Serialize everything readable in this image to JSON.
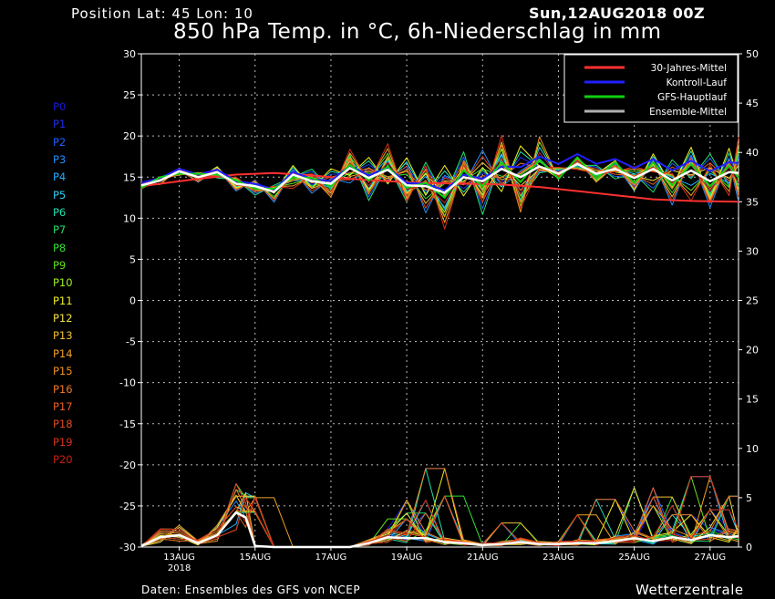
{
  "header": {
    "position": "Position  Lat: 45 Lon: 10",
    "date": "Sun,12AUG2018 00Z",
    "title": "850 hPa Temp. in °C, 6h-Niederschlag in mm"
  },
  "footer": {
    "source": "Daten: Ensembles des GFS von NCEP",
    "brand": "Wetterzentrale"
  },
  "members": [
    {
      "label": "P0",
      "color": "#1a1adc"
    },
    {
      "label": "P1",
      "color": "#2030e8"
    },
    {
      "label": "P2",
      "color": "#2060ff"
    },
    {
      "label": "P3",
      "color": "#2090ff"
    },
    {
      "label": "P4",
      "color": "#20b0ff"
    },
    {
      "label": "P5",
      "color": "#30d0f0"
    },
    {
      "label": "P6",
      "color": "#20e0b0"
    },
    {
      "label": "P7",
      "color": "#20e070"
    },
    {
      "label": "P8",
      "color": "#30e030"
    },
    {
      "label": "P9",
      "color": "#60e020"
    },
    {
      "label": "P10",
      "color": "#a0f020"
    },
    {
      "label": "P11",
      "color": "#f0f020"
    },
    {
      "label": "P12",
      "color": "#f0e040"
    },
    {
      "label": "P13",
      "color": "#f0c030"
    },
    {
      "label": "P14",
      "color": "#f0a020"
    },
    {
      "label": "P15",
      "color": "#f09020"
    },
    {
      "label": "P16",
      "color": "#f07820"
    },
    {
      "label": "P17",
      "color": "#e86020"
    },
    {
      "label": "P18",
      "color": "#e04820"
    },
    {
      "label": "P19",
      "color": "#d83018"
    },
    {
      "label": "P20",
      "color": "#c82010"
    }
  ],
  "chart_data": {
    "type": "line",
    "x_unit": "days from 12AUG2018 00Z",
    "xlim": [
      0.5,
      16.25
    ],
    "ylim_left": [
      -30,
      30
    ],
    "ylim_right": [
      0,
      50
    ],
    "y_left_ticks": [
      30,
      25,
      20,
      15,
      10,
      5,
      0,
      -5,
      -10,
      -15,
      -20,
      -25,
      -30
    ],
    "y_right_ticks": [
      50,
      45,
      40,
      35,
      30,
      25,
      20,
      15,
      10,
      5,
      0
    ],
    "x_ticks": [
      {
        "day": 1.5,
        "label": "13AUG",
        "sub": "2018"
      },
      {
        "day": 3.5,
        "label": "15AUG",
        "sub": ""
      },
      {
        "day": 5.5,
        "label": "17AUG",
        "sub": ""
      },
      {
        "day": 7.5,
        "label": "19AUG",
        "sub": ""
      },
      {
        "day": 9.5,
        "label": "21AUG",
        "sub": ""
      },
      {
        "day": 11.5,
        "label": "23AUG",
        "sub": ""
      },
      {
        "day": 13.5,
        "label": "25AUG",
        "sub": ""
      },
      {
        "day": 15.5,
        "label": "27AUG",
        "sub": ""
      }
    ],
    "grid": true,
    "legend_position": "top-right",
    "legend": [
      {
        "name": "30-Jahres-Mittel",
        "color": "#ff3030"
      },
      {
        "name": "Kontroll-Lauf",
        "color": "#2020ff"
      },
      {
        "name": "GFS-Hauptlauf",
        "color": "#10d010"
      },
      {
        "name": "Ensemble-Mittel",
        "color": "#b0b0b0"
      }
    ],
    "climatology_temp": {
      "days": [
        0.5,
        1,
        2,
        3,
        4,
        5,
        6,
        7,
        8,
        9,
        10,
        11,
        12,
        13,
        14,
        15,
        16.25
      ],
      "values": [
        13.9,
        14.2,
        14.8,
        15.3,
        15.5,
        15.2,
        14.8,
        14.5,
        14.3,
        14.2,
        14.1,
        13.8,
        13.3,
        12.8,
        12.3,
        12.1,
        12.0
      ]
    },
    "ensemble_mean_temp": {
      "days": [
        0.5,
        1,
        1.5,
        2,
        2.5,
        3,
        3.5,
        4,
        4.5,
        5,
        5.5,
        6,
        6.5,
        7,
        7.5,
        8,
        8.5,
        9,
        9.5,
        10,
        10.5,
        11,
        11.5,
        12,
        12.5,
        13,
        13.5,
        14,
        14.5,
        15,
        15.5,
        16,
        16.25
      ],
      "values": [
        14.0,
        14.6,
        15.7,
        15.0,
        15.6,
        14.2,
        13.9,
        13.2,
        15.3,
        14.5,
        14.2,
        16.1,
        14.9,
        15.9,
        14.0,
        13.9,
        13.1,
        15.0,
        14.5,
        16.0,
        15.0,
        16.3,
        15.4,
        16.6,
        15.4,
        16.0,
        14.9,
        16.0,
        14.6,
        15.8,
        14.5,
        15.6,
        15.5
      ]
    },
    "ensemble_mean_precip": {
      "days": [
        0.5,
        1,
        1.5,
        2,
        2.5,
        3,
        3.25,
        3.5,
        4,
        4.5,
        5,
        5.5,
        6,
        6.5,
        7,
        7.5,
        8,
        8.5,
        9,
        9.5,
        10,
        10.5,
        11,
        11.5,
        12,
        12.5,
        13,
        13.5,
        14,
        14.5,
        15,
        15.5,
        16,
        16.25
      ],
      "values": [
        0.1,
        1.0,
        1.2,
        0.4,
        1.2,
        3.5,
        3.0,
        0.1,
        0,
        0,
        0,
        0,
        0,
        0.4,
        1.0,
        0.9,
        0.9,
        0.5,
        0.4,
        0.2,
        0.3,
        0.5,
        0.3,
        0.3,
        0.4,
        0.4,
        0.6,
        0.9,
        0.6,
        1.0,
        0.7,
        1.2,
        1.0,
        1.1
      ]
    },
    "members_temp_spread": [
      [
        -0.3,
        0.2,
        -0.6,
        0.4,
        0.0,
        0.5,
        -0.8,
        0.9,
        -1.2,
        0.6,
        -1.4,
        1.1,
        -1.7,
        1.2,
        -0.9,
        0.8,
        -2.4,
        1.6,
        -1.1,
        2.0,
        -2.6,
        2.2
      ],
      [
        0.2,
        -0.4,
        0.5,
        -0.2,
        0.6,
        -0.7,
        1.0,
        -0.4,
        1.5,
        -1.3,
        1.9,
        -0.6,
        2.2,
        -1.4,
        2.6,
        -0.9,
        2.8,
        -1.8,
        1.3,
        -2.1,
        2.5
      ],
      [
        -0.5,
        0.5,
        -0.2,
        0.7,
        -0.9,
        0.3,
        -1.5,
        1.4,
        -0.5,
        1.8,
        -1.0,
        1.6,
        -2.3,
        0.4,
        -1.6,
        2.1,
        -0.4,
        2.5,
        -3.0,
        1.0,
        -2.0
      ],
      [
        0.4,
        -0.2,
        0.3,
        -0.6,
        0.4,
        -1.1,
        0.6,
        -1.6,
        1.0,
        -1.8,
        0.8,
        -2.1,
        1.2,
        -1.1,
        2.3,
        -2.5,
        1.4,
        -0.7,
        2.9,
        -1.6,
        0.6
      ],
      [
        0.0,
        0.3,
        -0.4,
        0.2,
        -0.3,
        0.9,
        -0.4,
        0.5,
        -2.0,
        1.1,
        -1.6,
        2.4,
        -0.8,
        2.8,
        -1.4,
        1.9,
        -3.3,
        0.9,
        -1.8,
        3.0,
        -2.6
      ]
    ],
    "members_precip_spikes": [
      [
        [
          3.1,
          5.2
        ],
        [
          7.4,
          6.8
        ],
        [
          13.9,
          6.0
        ],
        [
          15.3,
          5.4
        ]
      ],
      [
        [
          3.2,
          4.5
        ],
        [
          8.1,
          10.2
        ],
        [
          12.6,
          6.2
        ],
        [
          14.6,
          4.2
        ]
      ],
      [
        [
          3.3,
          6.0
        ],
        [
          7.6,
          4.0
        ],
        [
          13.5,
          7.0
        ],
        [
          15.8,
          6.0
        ]
      ],
      [
        [
          2.9,
          3.8
        ],
        [
          8.3,
          5.5
        ],
        [
          10.1,
          2.6
        ],
        [
          14.1,
          5.4
        ]
      ],
      [
        [
          3.4,
          4.9
        ],
        [
          7.2,
          2.8
        ],
        [
          11.8,
          3.2
        ],
        [
          15.1,
          7.0
        ]
      ]
    ]
  }
}
